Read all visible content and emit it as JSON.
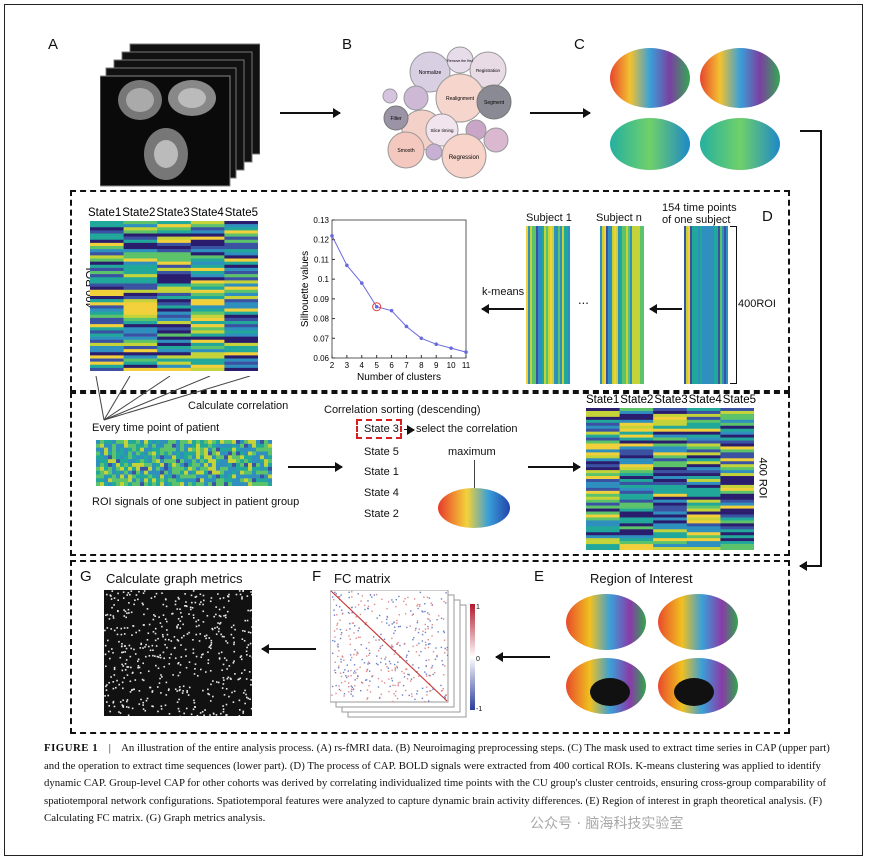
{
  "panels": {
    "A": "A",
    "B": "B",
    "C": "C",
    "D": "D",
    "E": "E",
    "F": "F",
    "G": "G"
  },
  "preproc_bubbles": [
    "Normalize",
    "Registration",
    "Realignment",
    "Segment",
    "Filter",
    "Slice timing",
    "Smooth",
    "Regression",
    "Remove the first"
  ],
  "panel_d": {
    "states_top": [
      "State1",
      "State2",
      "State3",
      "State4",
      "State5"
    ],
    "roi_label_left": "400 ROI",
    "subject1": "Subject 1",
    "subjectn": "Subject n",
    "time_points": "154 time points\nof one subject",
    "roi_label_right": "400ROI",
    "kmeans": "k-means",
    "dots": "...",
    "calc_corr": "Calculate correlation",
    "every_tp": "Every time point of patient",
    "roi_signals": "ROI signals of one subject in patient group",
    "corr_sort": "Correlation sorting (descending)",
    "sorted_states": [
      "State 3",
      "State 5",
      "State 1",
      "State 4",
      "State 2"
    ],
    "select_corr": "select the correlation",
    "maximum": "maximum",
    "states_bottom": [
      "State1",
      "State2",
      "State3",
      "State4",
      "State5"
    ],
    "roi_label_bottom": "400 ROI"
  },
  "chart_data": {
    "type": "line",
    "title": "",
    "xlabel": "Number of clusters",
    "ylabel": "Silhouette values",
    "x": [
      2,
      3,
      4,
      5,
      6,
      7,
      8,
      9,
      10,
      11
    ],
    "values": [
      0.122,
      0.107,
      0.098,
      0.086,
      0.084,
      0.076,
      0.07,
      0.067,
      0.065,
      0.063
    ],
    "xlim": [
      2,
      11
    ],
    "ylim": [
      0.06,
      0.13
    ],
    "yticks": [
      "0.06",
      "0.07",
      "0.08",
      "0.09",
      "0.1",
      "0.11",
      "0.12",
      "0.13"
    ],
    "xticks": [
      "2",
      "3",
      "4",
      "5",
      "6",
      "7",
      "8",
      "9",
      "10",
      "11"
    ],
    "highlight_x": 5
  },
  "panel_g": {
    "title": "Calculate graph metrics"
  },
  "panel_f": {
    "title": "FC matrix",
    "scale": [
      "1",
      "0",
      "-1"
    ]
  },
  "panel_e": {
    "title": "Region of Interest"
  },
  "caption": {
    "label": "FIGURE 1",
    "sep": "|",
    "text": "An illustration of the entire analysis process. (A) rs-fMRI data. (B) Neuroimaging preprocessing steps. (C) The mask used to extract time series in CAP (upper part) and the operation to extract time sequences (lower part). (D) The process of CAP. BOLD signals were extracted from 400 cortical ROIs. K-means clustering was applied to identify dynamic CAP. Group-level CAP for other cohorts was derived by correlating individualized time points with the CU group's cluster centroids, ensuring cross-group comparability of spatiotemporal network configurations. Spatiotemporal features were analyzed to capture dynamic brain activity differences. (E) Region of interest in graph theoretical analysis. (F) Calculating FC matrix. (G) Graph metrics analysis."
  },
  "watermark": "公众号 · 脑海科技实验室"
}
